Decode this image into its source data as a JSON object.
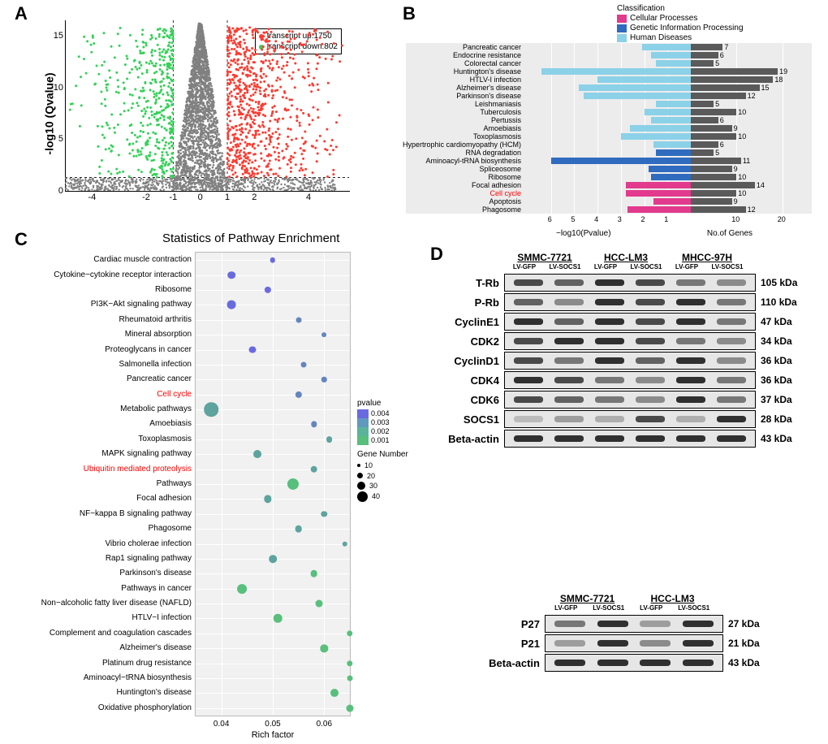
{
  "panelA": {
    "type": "scatter-volcano",
    "ylabel": "-log10 (Qvalue)",
    "xlim": [
      -5,
      5.5
    ],
    "ylim": [
      0,
      16.5
    ],
    "yticks": [
      0,
      5,
      10,
      15
    ],
    "xticks": [
      -4,
      -2,
      -1,
      0,
      1,
      2,
      4
    ],
    "threshold_y": 1.3,
    "threshold_x_neg": -1,
    "threshold_x_pos": 1,
    "colors": {
      "up": "#ff3b30",
      "down": "#34d157",
      "ns": "#808080",
      "threshold_line": "#000000"
    },
    "legend": [
      {
        "label": "transcript up:1750",
        "color": "#ff3b30"
      },
      {
        "label": "transcript down:802",
        "color": "#34d157"
      }
    ]
  },
  "panelB": {
    "type": "bar-horizontal-dual",
    "legend_title": "Classification",
    "legend": [
      {
        "label": "Cellular Processes",
        "color": "#e23a8d"
      },
      {
        "label": "Genetic Information Processing",
        "color": "#2f6bbf"
      },
      {
        "label": "Human Diseases",
        "color": "#8bd1e8"
      }
    ],
    "left_axis_label": "−log10(Pvalue)",
    "right_axis_label": "No.of Genes",
    "left_ticks": [
      6,
      5,
      4,
      3,
      2,
      1
    ],
    "right_ticks": [
      10,
      20
    ],
    "rows": [
      {
        "name": "Pancreatic cancer",
        "class": 2,
        "nlp": 2.1,
        "n": 7
      },
      {
        "name": "Endocrine resistance",
        "class": 2,
        "nlp": 1.7,
        "n": 6
      },
      {
        "name": "Colorectal cancer",
        "class": 2,
        "nlp": 1.5,
        "n": 5
      },
      {
        "name": "Huntington's disease",
        "class": 2,
        "nlp": 6.4,
        "n": 19
      },
      {
        "name": "HTLV-I infection",
        "class": 2,
        "nlp": 4.0,
        "n": 18
      },
      {
        "name": "Alzheimer's disease",
        "class": 2,
        "nlp": 4.8,
        "n": 15
      },
      {
        "name": "Parkinson's disease",
        "class": 2,
        "nlp": 4.6,
        "n": 12
      },
      {
        "name": "Leishmaniasis",
        "class": 2,
        "nlp": 1.5,
        "n": 5
      },
      {
        "name": "Tuberculosis",
        "class": 2,
        "nlp": 2.0,
        "n": 10
      },
      {
        "name": "Pertussis",
        "class": 2,
        "nlp": 1.7,
        "n": 6
      },
      {
        "name": "Amoebiasis",
        "class": 2,
        "nlp": 2.6,
        "n": 9
      },
      {
        "name": "Toxoplasmosis",
        "class": 2,
        "nlp": 3.0,
        "n": 10
      },
      {
        "name": "Hypertrophic cardiomyopathy (HCM)",
        "class": 2,
        "nlp": 1.6,
        "n": 6
      },
      {
        "name": "RNA degradation",
        "class": 1,
        "nlp": 1.5,
        "n": 5
      },
      {
        "name": "Aminoacyl-tRNA biosynthesis",
        "class": 1,
        "nlp": 6.0,
        "n": 11
      },
      {
        "name": "Spliceosome",
        "class": 1,
        "nlp": 1.8,
        "n": 9
      },
      {
        "name": "Ribosome",
        "class": 1,
        "nlp": 1.7,
        "n": 10
      },
      {
        "name": "Focal adhesion",
        "class": 0,
        "nlp": 2.8,
        "n": 14
      },
      {
        "name": "Cell cycle",
        "class": 0,
        "nlp": 2.8,
        "n": 10,
        "highlight": true
      },
      {
        "name": "Apoptosis",
        "class": 0,
        "nlp": 1.6,
        "n": 9
      },
      {
        "name": "Phagosome",
        "class": 0,
        "nlp": 2.7,
        "n": 12
      }
    ],
    "count_bar_color": "#5a5a5a"
  },
  "panelC": {
    "type": "bubble",
    "title": "Statistics of Pathway Enrichment",
    "xlabel": "Rich factor",
    "xlim": [
      0.035,
      0.065
    ],
    "xticks": [
      0.04,
      0.05,
      0.06
    ],
    "pvalue_scale": {
      "min": 0.001,
      "max": 0.004,
      "low_color": "#58bf7c",
      "high_color": "#6a6ae0"
    },
    "size_scale": [
      10,
      20,
      30,
      40
    ],
    "rows": [
      {
        "name": "Cardiac muscle contraction",
        "rf": 0.05,
        "n": 4,
        "p": 0.004
      },
      {
        "name": "Cytokine−cytokine receptor interaction",
        "rf": 0.042,
        "n": 12,
        "p": 0.004
      },
      {
        "name": "Ribosome",
        "rf": 0.049,
        "n": 8,
        "p": 0.004
      },
      {
        "name": "PI3K−Akt signaling pathway",
        "rf": 0.042,
        "n": 16,
        "p": 0.004
      },
      {
        "name": "Rheumatoid arthritis",
        "rf": 0.055,
        "n": 5,
        "p": 0.003
      },
      {
        "name": "Mineral absorption",
        "rf": 0.06,
        "n": 3,
        "p": 0.003
      },
      {
        "name": "Proteoglycans in cancer",
        "rf": 0.046,
        "n": 10,
        "p": 0.004
      },
      {
        "name": "Salmonella infection",
        "rf": 0.056,
        "n": 5,
        "p": 0.003
      },
      {
        "name": "Pancreatic cancer",
        "rf": 0.06,
        "n": 4,
        "p": 0.003
      },
      {
        "name": "Cell cycle",
        "rf": 0.055,
        "n": 8,
        "p": 0.003,
        "highlight": true
      },
      {
        "name": "Metabolic pathways",
        "rf": 0.038,
        "n": 50,
        "p": 0.002
      },
      {
        "name": "Amoebiasis",
        "rf": 0.058,
        "n": 6,
        "p": 0.003
      },
      {
        "name": "Toxoplasmosis",
        "rf": 0.061,
        "n": 7,
        "p": 0.002
      },
      {
        "name": "MAPK signaling pathway",
        "rf": 0.047,
        "n": 13,
        "p": 0.002
      },
      {
        "name": "Ubiquitin mediated proteolysis",
        "rf": 0.058,
        "n": 9,
        "p": 0.002,
        "highlight": true
      },
      {
        "name": "Pathways",
        "rf": 0.054,
        "n": 30,
        "p": 0.001
      },
      {
        "name": "Focal adhesion",
        "rf": 0.049,
        "n": 11,
        "p": 0.002
      },
      {
        "name": "NF−kappa B signaling pathway",
        "rf": 0.06,
        "n": 6,
        "p": 0.002
      },
      {
        "name": "Phagosome",
        "rf": 0.055,
        "n": 9,
        "p": 0.002
      },
      {
        "name": "Vibrio cholerae infection",
        "rf": 0.064,
        "n": 4,
        "p": 0.002
      },
      {
        "name": "Rap1 signaling pathway",
        "rf": 0.05,
        "n": 12,
        "p": 0.002
      },
      {
        "name": "Parkinson's disease",
        "rf": 0.058,
        "n": 9,
        "p": 0.001
      },
      {
        "name": "Pathways in cancer",
        "rf": 0.044,
        "n": 20,
        "p": 0.001
      },
      {
        "name": "Non−alcoholic fatty liver disease (NAFLD)",
        "rf": 0.059,
        "n": 10,
        "p": 0.001
      },
      {
        "name": "HTLV−I infection",
        "rf": 0.051,
        "n": 15,
        "p": 0.001
      },
      {
        "name": "Complement and coagulation cascades",
        "rf": 0.065,
        "n": 6,
        "p": 0.001
      },
      {
        "name": "Alzheimer's disease",
        "rf": 0.06,
        "n": 11,
        "p": 0.001
      },
      {
        "name": "Platinum drug resistance",
        "rf": 0.065,
        "n": 6,
        "p": 0.001
      },
      {
        "name": "Aminoacyl−tRNA biosynthesis",
        "rf": 0.065,
        "n": 5,
        "p": 0.001
      },
      {
        "name": "Huntington's disease",
        "rf": 0.062,
        "n": 13,
        "p": 0.001
      },
      {
        "name": "Oxidative phosphorylation",
        "rf": 0.065,
        "n": 10,
        "p": 0.001
      }
    ]
  },
  "panelD": {
    "type": "western-blot",
    "groups_top": [
      "SMMC-7721",
      "HCC-LM3",
      "MHCC-97H"
    ],
    "subgroups": [
      "LV-GFP",
      "LV-SOCS1"
    ],
    "rows_top": [
      {
        "name": "T-Rb",
        "kda": "105 kDa",
        "intensity": [
          0.8,
          0.7,
          0.9,
          0.8,
          0.6,
          0.5
        ]
      },
      {
        "name": "P-Rb",
        "kda": "110 kDa",
        "intensity": [
          0.7,
          0.5,
          0.9,
          0.8,
          0.9,
          0.6
        ]
      },
      {
        "name": "CyclinE1",
        "kda": "47 kDa",
        "intensity": [
          0.9,
          0.7,
          0.9,
          0.8,
          0.9,
          0.6
        ]
      },
      {
        "name": "CDK2",
        "kda": "34 kDa",
        "intensity": [
          0.8,
          0.9,
          0.9,
          0.8,
          0.6,
          0.5
        ]
      },
      {
        "name": "CyclinD1",
        "kda": "36 kDa",
        "intensity": [
          0.8,
          0.6,
          0.9,
          0.7,
          0.9,
          0.5
        ]
      },
      {
        "name": "CDK4",
        "kda": "36 kDa",
        "intensity": [
          0.9,
          0.8,
          0.6,
          0.5,
          0.9,
          0.6
        ]
      },
      {
        "name": "CDK6",
        "kda": "37 kDa",
        "intensity": [
          0.8,
          0.7,
          0.6,
          0.5,
          0.9,
          0.6
        ]
      },
      {
        "name": "SOCS1",
        "kda": "28 kDa",
        "intensity": [
          0.2,
          0.4,
          0.3,
          0.8,
          0.3,
          0.9
        ]
      },
      {
        "name": "Beta-actin",
        "kda": "43 kDa",
        "intensity": [
          0.9,
          0.9,
          0.9,
          0.9,
          0.9,
          0.9
        ]
      }
    ],
    "groups_bottom": [
      "SMMC-7721",
      "HCC-LM3"
    ],
    "rows_bottom": [
      {
        "name": "P27",
        "kda": "27 kDa",
        "intensity": [
          0.6,
          0.9,
          0.4,
          0.9
        ]
      },
      {
        "name": "P21",
        "kda": "21 kDa",
        "intensity": [
          0.4,
          0.9,
          0.5,
          0.9
        ]
      },
      {
        "name": "Beta-actin",
        "kda": "43 kDa",
        "intensity": [
          0.9,
          0.9,
          0.9,
          0.9
        ]
      }
    ]
  }
}
